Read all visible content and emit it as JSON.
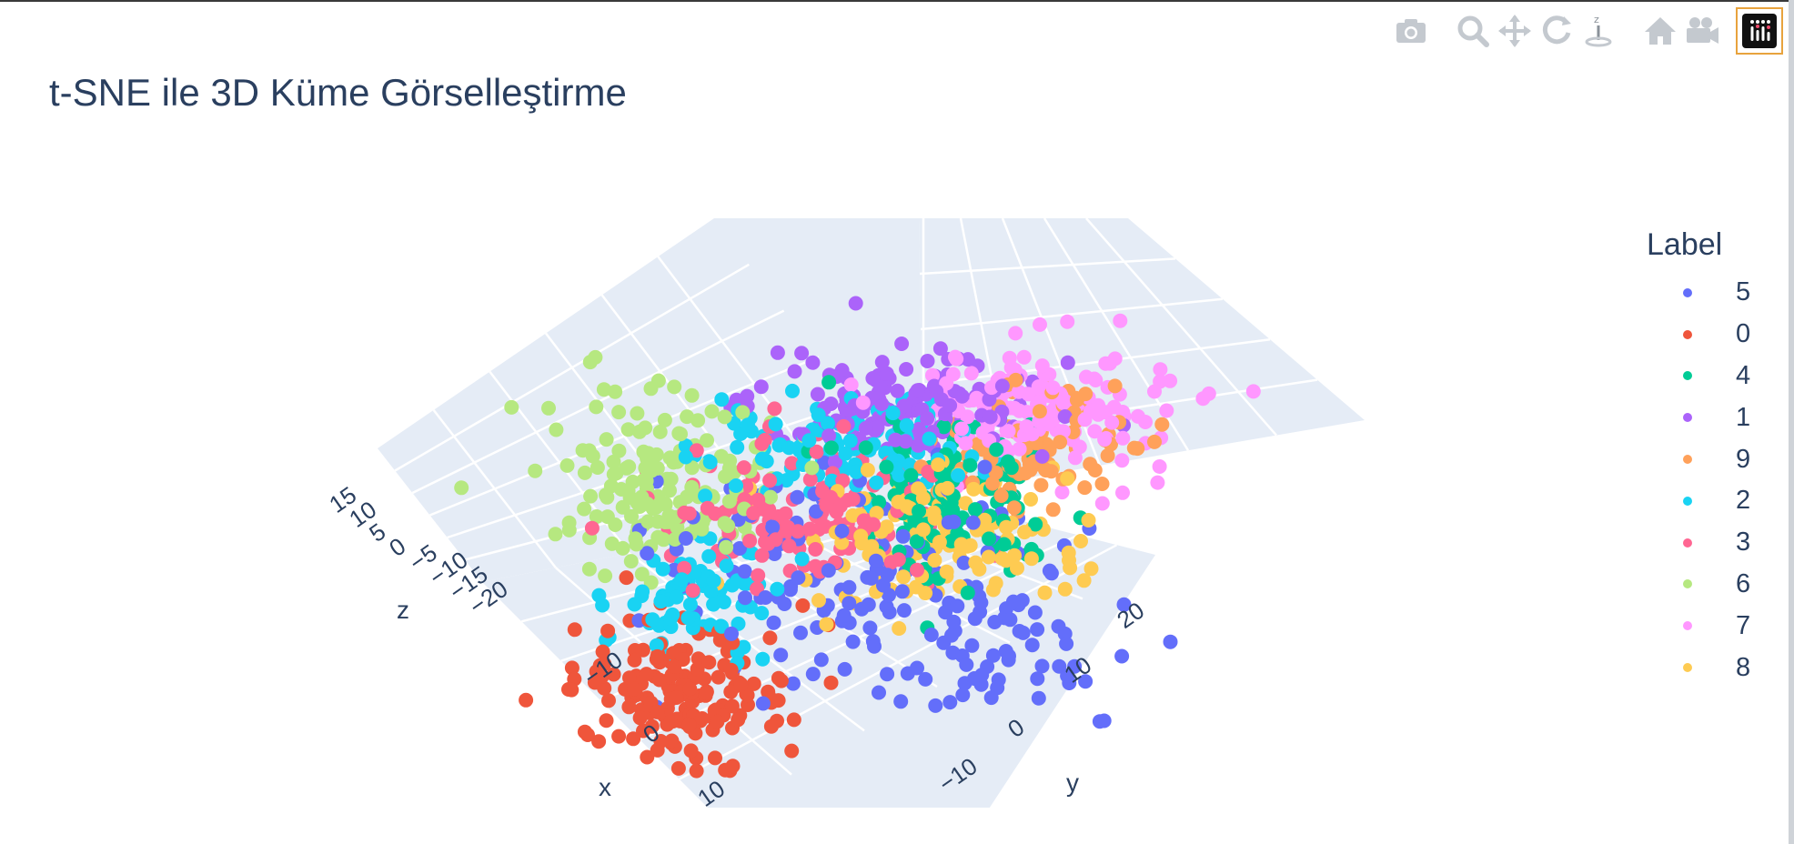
{
  "title": "t-SNE ile 3D Küme Görselleştirme",
  "modebar": {
    "buttons": [
      "camera-icon",
      "zoom-icon",
      "pan-icon",
      "orbit-rotation-icon",
      "turntable-rotation-icon",
      "reset-camera-icon",
      "last-saved-camera-icon"
    ],
    "logo": "plotly-logo"
  },
  "legend": {
    "title": "Label",
    "items": [
      {
        "label": "5",
        "color": "#636efa"
      },
      {
        "label": "0",
        "color": "#EF553B"
      },
      {
        "label": "4",
        "color": "#00cc96"
      },
      {
        "label": "1",
        "color": "#ab63fa"
      },
      {
        "label": "9",
        "color": "#FFA15A"
      },
      {
        "label": "2",
        "color": "#19d3f3"
      },
      {
        "label": "3",
        "color": "#FF6692"
      },
      {
        "label": "6",
        "color": "#B6E880"
      },
      {
        "label": "7",
        "color": "#FF97FF"
      },
      {
        "label": "8",
        "color": "#FECB52"
      }
    ]
  },
  "chart_data": {
    "type": "scatter",
    "subtype": "3d-scatter",
    "title": "t-SNE ile 3D Küme Görselleştirme",
    "axes": {
      "x": {
        "label": "x",
        "ticks": [
          "−10",
          "0",
          "10"
        ]
      },
      "y": {
        "label": "y",
        "ticks": [
          "−10",
          "0",
          "10",
          "20"
        ]
      },
      "z": {
        "label": "z",
        "ticks": [
          "15",
          "10",
          "5",
          "0",
          "−5",
          "−10",
          "−15",
          "−20"
        ]
      }
    },
    "background": "#e5ecf6",
    "grid": true,
    "legend_position": "right",
    "series": [
      {
        "name": "5",
        "color": "#636efa",
        "clusters": [
          {
            "cx": 0.48,
            "cy": 0.66,
            "sx": 0.06,
            "sy": 0.06,
            "n": 120
          },
          {
            "cx": 0.54,
            "cy": 0.78,
            "sx": 0.05,
            "sy": 0.05,
            "n": 70
          }
        ]
      },
      {
        "name": "0",
        "color": "#EF553B",
        "clusters": [
          {
            "cx": 0.38,
            "cy": 0.82,
            "sx": 0.03,
            "sy": 0.04,
            "n": 170
          }
        ]
      },
      {
        "name": "4",
        "color": "#00cc96",
        "clusters": [
          {
            "cx": 0.53,
            "cy": 0.58,
            "sx": 0.03,
            "sy": 0.05,
            "n": 120
          }
        ]
      },
      {
        "name": "1",
        "color": "#ab63fa",
        "clusters": [
          {
            "cx": 0.5,
            "cy": 0.48,
            "sx": 0.04,
            "sy": 0.03,
            "n": 150
          }
        ]
      },
      {
        "name": "9",
        "color": "#FFA15A",
        "clusters": [
          {
            "cx": 0.57,
            "cy": 0.55,
            "sx": 0.03,
            "sy": 0.03,
            "n": 60
          },
          {
            "cx": 0.6,
            "cy": 0.5,
            "sx": 0.02,
            "sy": 0.03,
            "n": 30
          }
        ]
      },
      {
        "name": "2",
        "color": "#19d3f3",
        "clusters": [
          {
            "cx": 0.46,
            "cy": 0.53,
            "sx": 0.04,
            "sy": 0.03,
            "n": 110
          },
          {
            "cx": 0.39,
            "cy": 0.7,
            "sx": 0.025,
            "sy": 0.04,
            "n": 80
          }
        ]
      },
      {
        "name": "3",
        "color": "#FF6692",
        "clusters": [
          {
            "cx": 0.45,
            "cy": 0.61,
            "sx": 0.04,
            "sy": 0.04,
            "n": 140
          }
        ]
      },
      {
        "name": "6",
        "color": "#B6E880",
        "clusters": [
          {
            "cx": 0.37,
            "cy": 0.57,
            "sx": 0.03,
            "sy": 0.05,
            "n": 160
          }
        ]
      },
      {
        "name": "7",
        "color": "#FF97FF",
        "clusters": [
          {
            "cx": 0.58,
            "cy": 0.48,
            "sx": 0.04,
            "sy": 0.04,
            "n": 150
          }
        ]
      },
      {
        "name": "8",
        "color": "#FECB52",
        "clusters": [
          {
            "cx": 0.52,
            "cy": 0.64,
            "sx": 0.04,
            "sy": 0.04,
            "n": 130
          }
        ]
      }
    ]
  }
}
